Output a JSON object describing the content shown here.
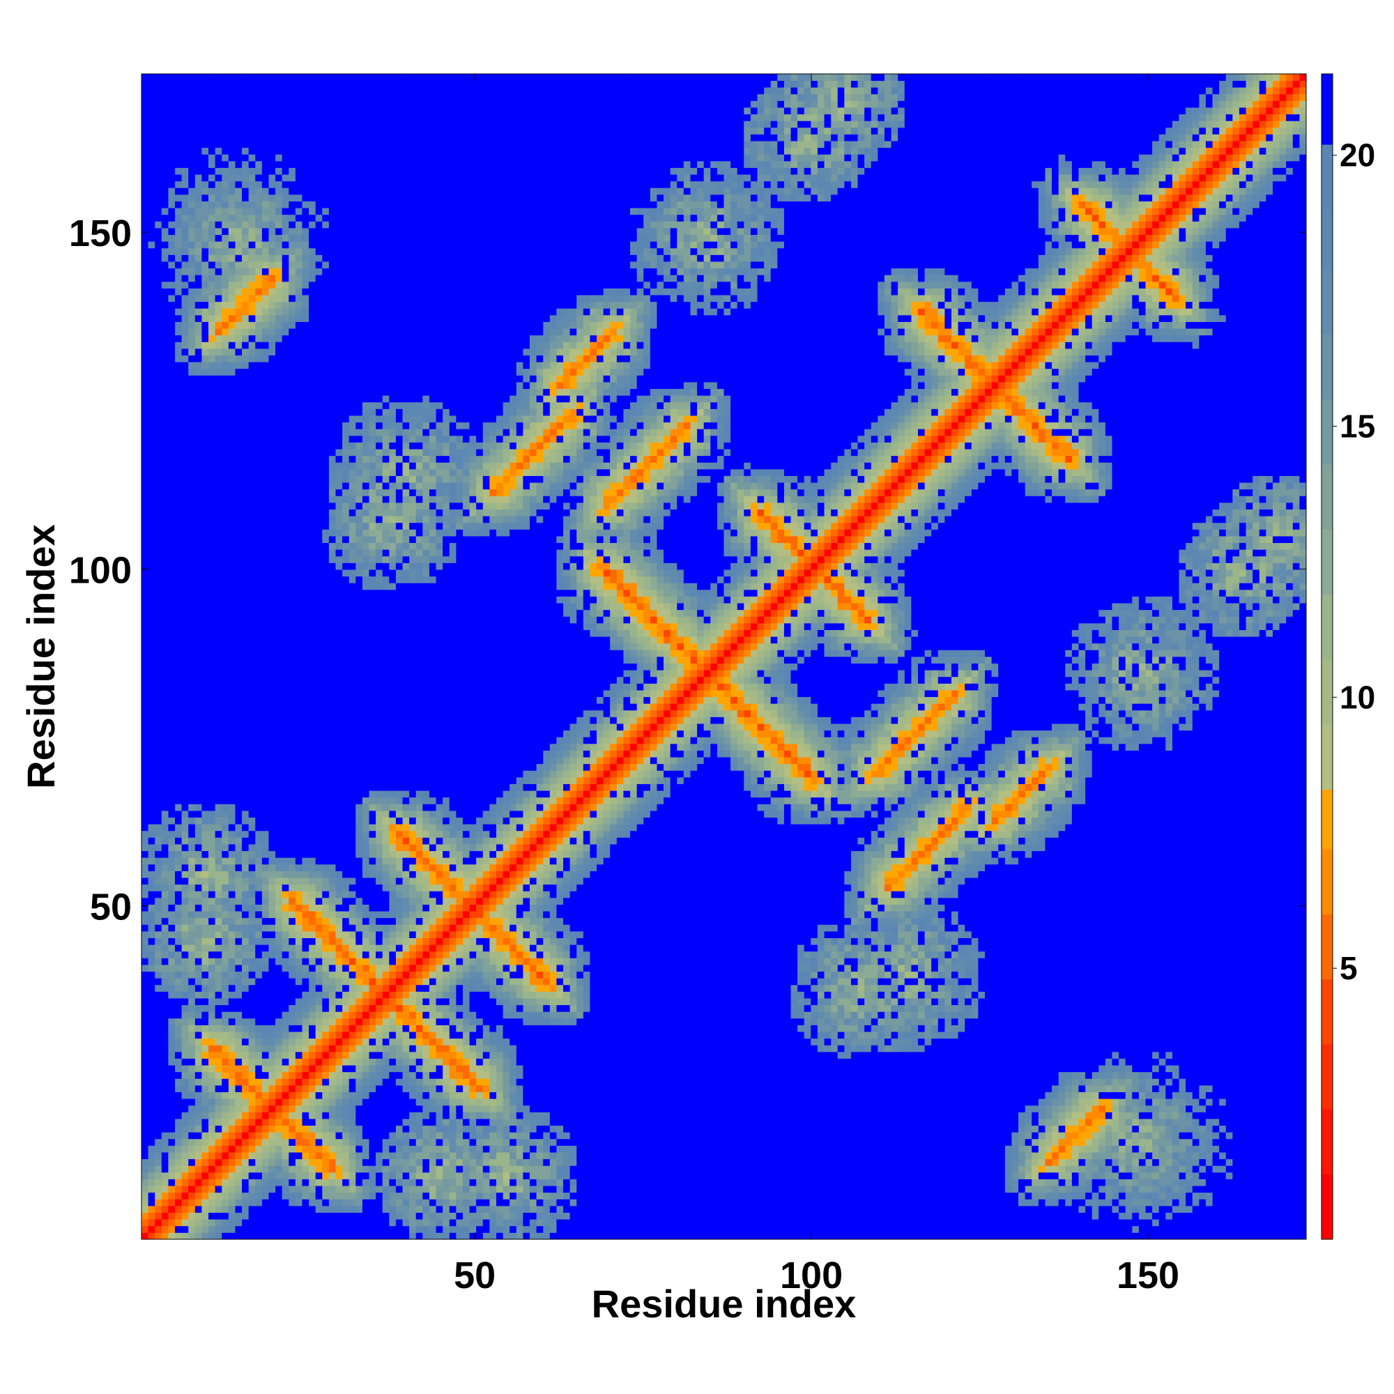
{
  "chart_data": {
    "type": "heatmap",
    "title": "",
    "xlabel": "Residue index",
    "ylabel": "Residue index",
    "n_residues": 174,
    "xlim": [
      0.5,
      173.5
    ],
    "ylim": [
      0.5,
      173.5
    ],
    "x_ticks": [
      50,
      100,
      150
    ],
    "y_ticks": [
      50,
      100,
      150
    ],
    "x_tick_labels": [
      "50",
      "100",
      "150"
    ],
    "y_tick_labels": [
      "50",
      "100",
      "150"
    ],
    "colorbar": {
      "min": 0,
      "max": 21.5,
      "ticks": [
        5,
        10,
        15,
        20
      ],
      "tick_labels": [
        "5",
        "10",
        "15",
        "20"
      ],
      "bands": [
        {
          "from": 0.0,
          "to": 1.2,
          "color": "#ff0000"
        },
        {
          "from": 1.2,
          "to": 2.4,
          "color": "#ff1500"
        },
        {
          "from": 2.4,
          "to": 3.6,
          "color": "#ff2d00"
        },
        {
          "from": 3.6,
          "to": 4.8,
          "color": "#ff4500"
        },
        {
          "from": 4.8,
          "to": 6.0,
          "color": "#ff6a00"
        },
        {
          "from": 6.0,
          "to": 7.2,
          "color": "#ff8c00"
        },
        {
          "from": 7.2,
          "to": 8.3,
          "color": "#ffa500"
        },
        {
          "from": 8.3,
          "to": 9.5,
          "color": "#b4be82"
        },
        {
          "from": 9.5,
          "to": 10.7,
          "color": "#a5b987"
        },
        {
          "from": 10.7,
          "to": 11.9,
          "color": "#9ab48c"
        },
        {
          "from": 11.9,
          "to": 13.1,
          "color": "#8daa94"
        },
        {
          "from": 13.1,
          "to": 14.3,
          "color": "#80a29a"
        },
        {
          "from": 14.3,
          "to": 15.5,
          "color": "#759aa0"
        },
        {
          "from": 15.5,
          "to": 16.7,
          "color": "#6b92a7"
        },
        {
          "from": 16.7,
          "to": 17.9,
          "color": "#628cae"
        },
        {
          "from": 17.9,
          "to": 19.0,
          "color": "#5d88b2"
        },
        {
          "from": 19.0,
          "to": 20.2,
          "color": "#5b86b4"
        },
        {
          "from": 20.2,
          "to": 21.5,
          "color": "#0000ff"
        }
      ]
    },
    "background_color": "#0000ff",
    "features": [
      {
        "kind": "diagonal",
        "note": "main diagonal i=j"
      },
      {
        "kind": "anti-parallel",
        "center": [
          20,
          20
        ],
        "length": 9
      },
      {
        "kind": "anti-parallel",
        "center": [
          37,
          37
        ],
        "length": 14
      },
      {
        "kind": "anti-parallel",
        "center": [
          50,
          50
        ],
        "length": 11
      },
      {
        "kind": "anti-parallel",
        "center": [
          77,
          93
        ],
        "length": 8
      },
      {
        "kind": "anti-parallel",
        "center": [
          101,
          101
        ],
        "length": 8
      },
      {
        "kind": "anti-parallel",
        "center": [
          128,
          128
        ],
        "length": 11
      },
      {
        "kind": "anti-parallel",
        "center": [
          148,
          148
        ],
        "length": 7
      },
      {
        "kind": "parallel",
        "center": [
          59,
          118
        ],
        "length": 6
      },
      {
        "kind": "parallel",
        "center": [
          76,
          116
        ],
        "length": 6
      },
      {
        "kind": "parallel",
        "center": [
          118,
          57
        ],
        "length": 6
      },
      {
        "kind": "parallel",
        "center": [
          116,
          78
        ],
        "length": 6
      },
      {
        "kind": "parallel",
        "center": [
          16,
          140
        ],
        "length": 4
      },
      {
        "kind": "parallel",
        "center": [
          140,
          16
        ],
        "length": 4
      },
      {
        "kind": "parallel",
        "center": [
          132,
          67
        ],
        "length": 5
      },
      {
        "kind": "parallel",
        "center": [
          67,
          132
        ],
        "length": 4
      },
      {
        "kind": "blob",
        "center": [
          15,
          150
        ],
        "radius": 14
      },
      {
        "kind": "blob",
        "center": [
          150,
          15
        ],
        "radius": 14
      },
      {
        "kind": "blob",
        "center": [
          150,
          85
        ],
        "radius": 12
      },
      {
        "kind": "blob",
        "center": [
          85,
          150
        ],
        "radius": 12
      },
      {
        "kind": "blob",
        "center": [
          105,
          170
        ],
        "radius": 10
      },
      {
        "kind": "blob",
        "center": [
          170,
          105
        ],
        "radius": 10
      },
      {
        "kind": "blob",
        "center": [
          40,
          115
        ],
        "radius": 12
      },
      {
        "kind": "blob",
        "center": [
          115,
          40
        ],
        "radius": 12
      },
      {
        "kind": "blob",
        "center": [
          10,
          55
        ],
        "radius": 11
      },
      {
        "kind": "blob",
        "center": [
          55,
          10
        ],
        "radius": 11
      },
      {
        "kind": "blob",
        "center": [
          45,
          10
        ],
        "radius": 10
      },
      {
        "kind": "blob",
        "center": [
          10,
          45
        ],
        "radius": 10
      },
      {
        "kind": "blob",
        "center": [
          108,
          38
        ],
        "radius": 11
      },
      {
        "kind": "blob",
        "center": [
          38,
          108
        ],
        "radius": 11
      },
      {
        "kind": "blob",
        "center": [
          165,
          100
        ],
        "radius": 10
      },
      {
        "kind": "blob",
        "center": [
          100,
          165
        ],
        "radius": 10
      }
    ]
  }
}
